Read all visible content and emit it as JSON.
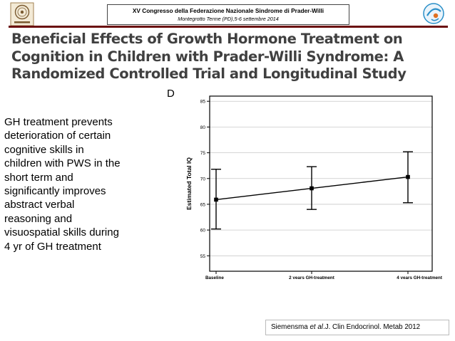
{
  "header": {
    "line1": "XV Congresso della Federazione Nazionale Sindrome di Prader-Willi",
    "line2": "Montegrotto Terme (PD),5-6 settembre 2014",
    "logo_left_icon": "seal-logo-icon",
    "logo_right_icon": "child-emblem-icon",
    "accent_color": "#6b0f0f"
  },
  "title": {
    "line1": "Beneficial Effects of Growth Hormone Treatment on",
    "line2": "Cognition in Children with Prader-Willi Syndrome: A",
    "line3": "Randomized Controlled Trial and Longitudinal Study"
  },
  "body_text": [
    "GH treatment prevents",
    "deterioration of certain",
    "cognitive skills in",
    "children with PWS in the",
    "short term and",
    "significantly improves",
    "abstract verbal",
    "reasoning and",
    "visuospatial skills during",
    "4 yr of GH treatment"
  ],
  "chart_data": {
    "type": "line",
    "panel_label": "D",
    "categories": [
      "Baseline",
      "2 years GH-treatment",
      "4 years GH-treatment"
    ],
    "series": [
      {
        "name": "Estimated Total IQ",
        "values": [
          65.9,
          68.1,
          70.3
        ],
        "err_low": [
          60.2,
          64.0,
          65.3
        ],
        "err_high": [
          71.8,
          72.3,
          75.2
        ]
      }
    ],
    "ylabel": "Estimated Total IQ",
    "xlabel": "",
    "ylim": [
      52,
      86
    ],
    "yticks": [
      55,
      60,
      65,
      70,
      75,
      80,
      85
    ],
    "grid": true
  },
  "citation": {
    "author": "Siemensma ",
    "etal": "et al",
    "rest": ".J. Clin Endocrinol. Metab  2012"
  }
}
